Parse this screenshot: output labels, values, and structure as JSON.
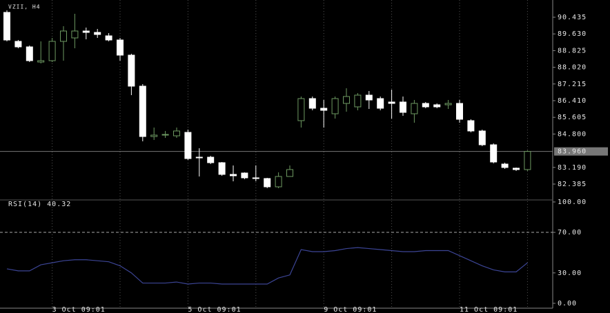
{
  "chart_data": [
    {
      "type": "candlestick",
      "title": "VZII, H4",
      "categories": [
        null,
        null,
        null,
        null,
        "3 Oct 09:01",
        null,
        null,
        null,
        null,
        null,
        null,
        null,
        null,
        null,
        null,
        null,
        "5 Oct 09:01",
        null,
        null,
        null,
        null,
        null,
        null,
        null,
        null,
        null,
        null,
        null,
        "9 Oct 09:01",
        null,
        null,
        null,
        null,
        null,
        null,
        null,
        null,
        null,
        null,
        null,
        "11 Oct 09:01",
        null,
        null,
        null,
        null,
        null,
        null
      ],
      "open": [
        90.668,
        89.271,
        89.005,
        88.273,
        88.339,
        89.271,
        89.437,
        89.77,
        89.703,
        89.537,
        89.337,
        88.606,
        87.109,
        84.68,
        84.747,
        84.714,
        84.88,
        83.683,
        83.683,
        83.417,
        82.852,
        82.919,
        82.686,
        82.653,
        82.253,
        82.752,
        85.445,
        86.51,
        86.044,
        85.778,
        86.277,
        86.111,
        86.676,
        86.51,
        86.344,
        86.344,
        85.778,
        86.277,
        86.211,
        86.211,
        86.277,
        85.445,
        84.947,
        84.281,
        83.351,
        83.152,
        83.085
      ],
      "high": [
        90.768,
        89.337,
        89.071,
        89.271,
        89.437,
        90.003,
        90.601,
        89.936,
        89.87,
        89.67,
        89.437,
        88.672,
        87.208,
        85.113,
        84.947,
        85.113,
        85.013,
        84.115,
        83.75,
        83.45,
        83.285,
        82.95,
        83.285,
        82.686,
        82.95,
        83.285,
        86.61,
        86.61,
        86.443,
        86.61,
        87.009,
        86.776,
        86.876,
        86.61,
        86.942,
        86.61,
        86.443,
        86.344,
        86.277,
        86.443,
        86.443,
        85.512,
        85.013,
        84.348,
        83.418,
        83.185,
        84.015
      ],
      "low": [
        89.271,
        88.938,
        88.273,
        88.206,
        88.273,
        88.339,
        88.938,
        89.371,
        89.437,
        89.271,
        88.339,
        86.676,
        84.448,
        84.514,
        84.614,
        84.614,
        83.55,
        82.752,
        83.35,
        82.786,
        82.519,
        82.62,
        82.519,
        82.187,
        82.187,
        82.752,
        85.113,
        85.944,
        85.113,
        85.545,
        85.878,
        85.944,
        86.011,
        85.944,
        85.545,
        85.678,
        85.346,
        86.044,
        86.044,
        86.011,
        85.346,
        84.88,
        84.214,
        83.385,
        83.118,
        83.018,
        83.018
      ],
      "close": [
        89.337,
        89.005,
        88.339,
        88.339,
        89.271,
        89.77,
        89.77,
        89.703,
        89.603,
        89.337,
        88.606,
        87.109,
        84.68,
        84.747,
        84.78,
        84.947,
        83.616,
        83.65,
        83.417,
        82.852,
        82.786,
        82.686,
        82.653,
        82.253,
        82.752,
        83.085,
        86.51,
        86.044,
        85.944,
        86.51,
        86.61,
        86.676,
        86.443,
        86.044,
        86.277,
        85.845,
        86.277,
        86.111,
        86.111,
        86.277,
        85.512,
        84.947,
        84.281,
        83.45,
        83.185,
        83.085,
        83.96
      ],
      "up_color": "#6e9a62",
      "down_color": "#ffffff",
      "ylim": [
        81.62,
        91.1
      ],
      "yticks": [
        90.435,
        {
          "value": 89.63,
          "label": "89.630"
        },
        88.825,
        {
          "value": 88.02,
          "label": "88.020"
        },
        87.215,
        {
          "value": 86.41,
          "label": "86.410"
        },
        85.605,
        {
          "value": 84.8,
          "label": "84.800"
        },
        {
          "value": 83.19,
          "label": "83.190"
        },
        82.385
      ],
      "last_price": {
        "value": 83.96,
        "label": "83.960"
      }
    },
    {
      "type": "line",
      "title": "RSI(14) 40.32",
      "color": "#3c4596",
      "values": [
        34,
        32,
        32,
        38,
        40,
        42,
        43,
        43,
        42,
        41,
        37,
        30,
        20,
        20,
        20,
        21,
        19,
        20,
        20,
        19,
        19,
        19,
        19,
        19,
        25,
        28,
        53,
        51,
        51,
        52,
        54,
        55,
        54,
        53,
        52,
        51,
        51,
        52,
        52,
        52,
        47,
        42,
        37,
        33,
        31,
        31,
        40
      ],
      "ylim": [
        -4.8,
        102
      ],
      "yticks": [
        {
          "value": 100,
          "label": "100.00"
        },
        {
          "value": 70,
          "label": "70.00"
        },
        {
          "value": 30,
          "label": "30.00"
        },
        {
          "value": 0,
          "label": "0.00"
        }
      ],
      "grid": true
    }
  ]
}
